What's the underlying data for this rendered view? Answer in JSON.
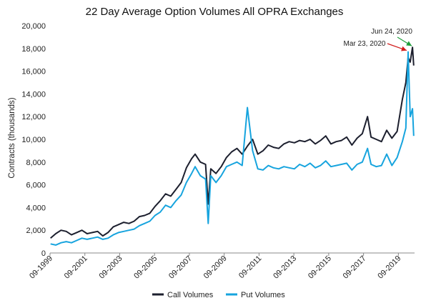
{
  "chart_data": {
    "type": "line",
    "title": "22 Day Average Option Volumes All OPRA Exchanges",
    "xlabel": "",
    "ylabel": "Contracts (thousands)",
    "ylim": [
      0,
      20000
    ],
    "yticks": [
      0,
      2000,
      4000,
      6000,
      8000,
      10000,
      12000,
      14000,
      16000,
      18000,
      20000
    ],
    "ytick_labels": [
      "0",
      "2,000",
      "4,000",
      "6,000",
      "8,000",
      "10,000",
      "12,000",
      "14,000",
      "16,000",
      "18,000",
      "20,000"
    ],
    "xlim": [
      1999.67,
      2020.6
    ],
    "xtick_labels": [
      "09-1999",
      "09-2001",
      "09-2003",
      "09-2005",
      "09-2007",
      "09-2009",
      "09-2011",
      "09-2013",
      "09-2015",
      "09-2017",
      "09-2019"
    ],
    "xtick_values": [
      1999.67,
      2001.67,
      2003.67,
      2005.67,
      2007.67,
      2009.67,
      2011.67,
      2013.67,
      2015.67,
      2017.67,
      2019.67
    ],
    "grid": false,
    "legend_position": "bottom",
    "series": [
      {
        "name": "Call Volumes",
        "color": "#1c1f2e",
        "x": [
          1999.7,
          2000.0,
          2000.3,
          2000.6,
          2000.9,
          2001.2,
          2001.5,
          2001.8,
          2002.1,
          2002.4,
          2002.7,
          2003.0,
          2003.3,
          2003.6,
          2003.9,
          2004.2,
          2004.5,
          2004.8,
          2005.1,
          2005.4,
          2005.7,
          2006.0,
          2006.3,
          2006.6,
          2006.9,
          2007.2,
          2007.5,
          2007.8,
          2008.0,
          2008.3,
          2008.6,
          2008.75,
          2008.9,
          2009.2,
          2009.5,
          2009.8,
          2010.1,
          2010.4,
          2010.7,
          2011.0,
          2011.3,
          2011.6,
          2011.9,
          2012.2,
          2012.5,
          2012.8,
          2013.1,
          2013.4,
          2013.7,
          2014.0,
          2014.3,
          2014.6,
          2014.9,
          2015.2,
          2015.5,
          2015.8,
          2016.1,
          2016.4,
          2016.7,
          2017.0,
          2017.3,
          2017.6,
          2017.9,
          2018.1,
          2018.4,
          2018.7,
          2019.0,
          2019.3,
          2019.6,
          2019.9,
          2020.1,
          2020.23,
          2020.35,
          2020.48,
          2020.55
        ],
        "y": [
          1300,
          1700,
          2000,
          1900,
          1600,
          1800,
          2000,
          1700,
          1800,
          1900,
          1500,
          1800,
          2300,
          2500,
          2700,
          2600,
          2800,
          3200,
          3300,
          3500,
          4100,
          4600,
          5200,
          5000,
          5600,
          6200,
          7500,
          8300,
          8700,
          8000,
          7800,
          4300,
          7400,
          7000,
          7600,
          8400,
          8900,
          9200,
          8700,
          9400,
          10000,
          8700,
          9000,
          9500,
          9300,
          9200,
          9600,
          9800,
          9700,
          9900,
          9800,
          10000,
          9600,
          9900,
          10300,
          9600,
          9800,
          9900,
          10200,
          9500,
          10100,
          10500,
          12000,
          10200,
          10000,
          9800,
          10800,
          10100,
          10700,
          13500,
          15000,
          17200,
          16800,
          18100,
          16500
        ]
      },
      {
        "name": "Put Volumes",
        "color": "#17a4de",
        "x": [
          1999.7,
          2000.0,
          2000.3,
          2000.6,
          2000.9,
          2001.2,
          2001.5,
          2001.8,
          2002.1,
          2002.4,
          2002.7,
          2003.0,
          2003.3,
          2003.6,
          2003.9,
          2004.2,
          2004.5,
          2004.8,
          2005.1,
          2005.4,
          2005.7,
          2006.0,
          2006.3,
          2006.6,
          2006.9,
          2007.2,
          2007.5,
          2007.8,
          2008.0,
          2008.3,
          2008.6,
          2008.75,
          2008.9,
          2009.2,
          2009.5,
          2009.8,
          2010.1,
          2010.4,
          2010.7,
          2011.0,
          2011.3,
          2011.6,
          2011.9,
          2012.2,
          2012.5,
          2012.8,
          2013.1,
          2013.4,
          2013.7,
          2014.0,
          2014.3,
          2014.6,
          2014.9,
          2015.2,
          2015.5,
          2015.8,
          2016.1,
          2016.4,
          2016.7,
          2017.0,
          2017.3,
          2017.6,
          2017.9,
          2018.1,
          2018.4,
          2018.7,
          2019.0,
          2019.3,
          2019.6,
          2019.9,
          2020.1,
          2020.23,
          2020.35,
          2020.48,
          2020.55
        ],
        "y": [
          800,
          700,
          900,
          1000,
          900,
          1100,
          1300,
          1200,
          1300,
          1400,
          1200,
          1300,
          1600,
          1800,
          1900,
          2000,
          2100,
          2400,
          2600,
          2800,
          3300,
          3600,
          4200,
          4000,
          4600,
          5100,
          6200,
          7000,
          7600,
          6800,
          6500,
          2600,
          6800,
          6200,
          6800,
          7600,
          7800,
          8000,
          7700,
          12800,
          9000,
          7400,
          7300,
          7700,
          7500,
          7400,
          7600,
          7500,
          7400,
          7800,
          7600,
          7900,
          7500,
          7700,
          8100,
          7600,
          7700,
          7800,
          7900,
          7300,
          7800,
          8000,
          9200,
          7800,
          7600,
          7700,
          8700,
          7700,
          8400,
          9800,
          11000,
          17700,
          12000,
          12700,
          10300
        ]
      }
    ],
    "annotations": [
      {
        "text": "Jun 24, 2020",
        "color": "#1e9e3a"
      },
      {
        "text": "Mar 23, 2020",
        "color": "#d11c1c"
      }
    ]
  }
}
